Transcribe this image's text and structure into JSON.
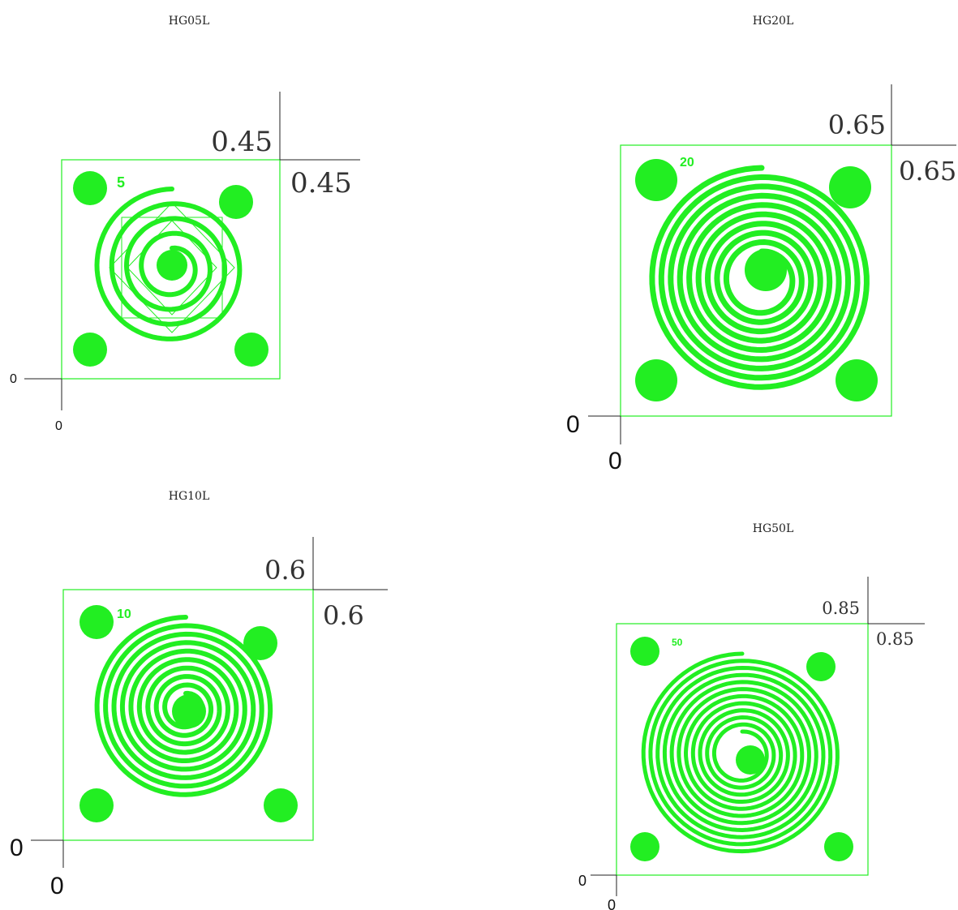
{
  "colors": {
    "green": "#22ee22",
    "ink": "#222222"
  },
  "panels": [
    {
      "title": "HG05L",
      "dim_top": "0.45",
      "dim_right": "0.45",
      "origin_x": "0",
      "origin_y": "0",
      "pad_label": "5"
    },
    {
      "title": "HG20L",
      "dim_top": "0.65",
      "dim_right": "0.65",
      "origin_x": "0",
      "origin_y": "0",
      "pad_label": "20"
    },
    {
      "title": "HG10L",
      "dim_top": "0.6",
      "dim_right": "0.6",
      "origin_x": "0",
      "origin_y": "0",
      "pad_label": "10"
    },
    {
      "title": "HG50L",
      "dim_top": "0.85",
      "dim_right": "0.85",
      "origin_x": "0",
      "origin_y": "0",
      "pad_label": "50"
    }
  ]
}
